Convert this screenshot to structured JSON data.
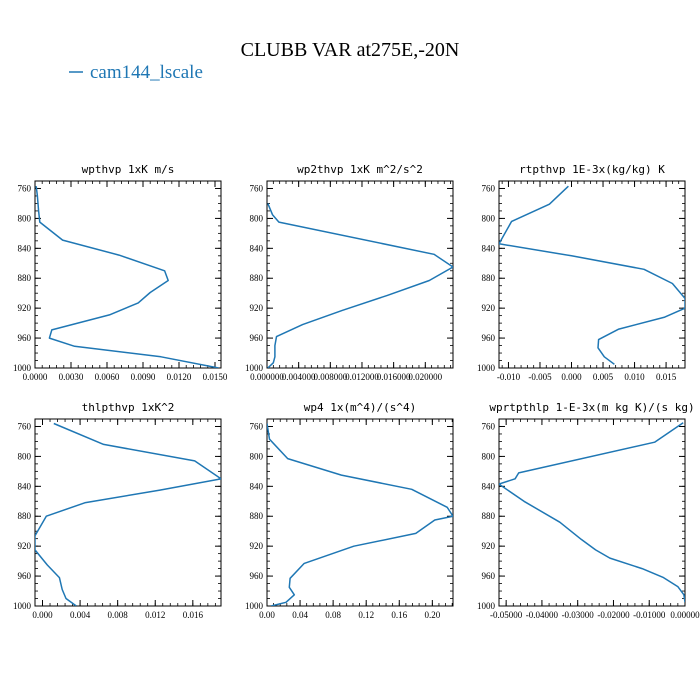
{
  "figure": {
    "title": "CLUBB VAR at275E,-20N",
    "legend": "cam144_lscale",
    "line_color": "#1f77b4"
  },
  "chart_data": [
    {
      "type": "line",
      "title": "wpthvp  1xK m/s",
      "xlim": [
        0,
        0.0155
      ],
      "ylim": [
        1000,
        750
      ],
      "xticks": [
        0,
        0.003,
        0.006,
        0.009,
        0.012,
        0.015
      ],
      "xtick_labels": [
        "0.0000",
        "0.0030",
        "0.0060",
        "0.0090",
        "0.0120",
        "0.0150"
      ],
      "yticks": [
        760,
        800,
        840,
        880,
        920,
        960,
        1000
      ],
      "ytick_labels": [
        "760",
        "800",
        "840",
        "880",
        "920",
        "960",
        "1000"
      ],
      "series": [
        {
          "x": [
            0.0001,
            0.0002,
            0.0003,
            0.0004,
            0.0023,
            0.007,
            0.0108,
            0.0111,
            0.0096,
            0.0086,
            0.0062,
            0.0014,
            0.0012,
            0.0033,
            0.0105,
            0.0153
          ],
          "y": [
            757,
            770,
            790,
            805,
            829,
            849,
            870,
            883,
            899,
            913,
            929,
            949,
            960,
            971,
            985,
            1000
          ]
        }
      ]
    },
    {
      "type": "line",
      "title": "wp2thvp  1xK m^2/s^2",
      "xlim": [
        0,
        0.0235
      ],
      "ylim": [
        1000,
        750
      ],
      "xticks": [
        0,
        0.004,
        0.008,
        0.012,
        0.016,
        0.02
      ],
      "xtick_labels": [
        "0.000000",
        "0.004000",
        "0.008000",
        "0.012000",
        "0.016000",
        "0.020000"
      ],
      "yticks": [
        760,
        800,
        840,
        880,
        920,
        960,
        1000
      ],
      "ytick_labels": [
        "760",
        "800",
        "840",
        "880",
        "920",
        "960",
        "1000"
      ],
      "series": [
        {
          "x": [
            0.0001,
            0.0007,
            0.0015,
            0.0211,
            0.0235,
            0.0205,
            0.0152,
            0.0095,
            0.0045,
            0.0012,
            0.001,
            0.001,
            0.0008,
            0.0001
          ],
          "y": [
            780,
            795,
            805,
            848,
            865,
            883,
            903,
            923,
            942,
            958,
            970,
            985,
            993,
            1000
          ]
        }
      ]
    },
    {
      "type": "line",
      "title": "rtpthvp  1E-3x(kg/kg) K",
      "xlim": [
        -0.0115,
        0.018
      ],
      "ylim": [
        1000,
        750
      ],
      "xticks": [
        -0.01,
        -0.005,
        0,
        0.005,
        0.01,
        0.015
      ],
      "xtick_labels": [
        "-0.010",
        "-0.005",
        "0.000",
        "0.005",
        "0.010",
        "0.015"
      ],
      "yticks": [
        760,
        800,
        840,
        880,
        920,
        960,
        1000
      ],
      "ytick_labels": [
        "760",
        "800",
        "840",
        "880",
        "920",
        "960",
        "1000"
      ],
      "series": [
        {
          "x": [
            -0.0005,
            -0.0035,
            -0.0095,
            -0.0115,
            0.0,
            0.0115,
            0.016,
            0.018,
            0.018,
            0.0148,
            0.0075,
            0.0043,
            0.0042,
            0.0052,
            0.0068
          ],
          "y": [
            757,
            781,
            804,
            834,
            850,
            868,
            887,
            907,
            920,
            932,
            948,
            962,
            973,
            985,
            995
          ]
        }
      ]
    },
    {
      "type": "line",
      "title": "thlpthvp  1xK^2",
      "xlim": [
        -0.0008,
        0.019
      ],
      "ylim": [
        1000,
        750
      ],
      "xticks": [
        0,
        0.004,
        0.008,
        0.012,
        0.016
      ],
      "xtick_labels": [
        "0.000",
        "0.004",
        "0.008",
        "0.012",
        "0.016"
      ],
      "yticks": [
        760,
        800,
        840,
        880,
        920,
        960,
        1000
      ],
      "ytick_labels": [
        "760",
        "800",
        "840",
        "880",
        "920",
        "960",
        "1000"
      ],
      "series": [
        {
          "x": [
            0.0012,
            0.0065,
            0.0162,
            0.019,
            0.0125,
            0.0045,
            0.0004,
            -0.0008,
            -0.0008,
            0.0005,
            0.0018,
            0.0021,
            0.0025,
            0.0036
          ],
          "y": [
            756,
            784,
            806,
            830,
            845,
            862,
            880,
            906,
            925,
            945,
            962,
            978,
            990,
            1000
          ]
        }
      ]
    },
    {
      "type": "line",
      "title": "wp4  1x(m^4)/(s^4)",
      "xlim": [
        0,
        0.225
      ],
      "ylim": [
        1000,
        750
      ],
      "xticks": [
        0,
        0.04,
        0.08,
        0.12,
        0.16,
        0.2
      ],
      "xtick_labels": [
        "0.00",
        "0.04",
        "0.08",
        "0.12",
        "0.16",
        "0.20"
      ],
      "yticks": [
        760,
        800,
        840,
        880,
        920,
        960,
        1000
      ],
      "ytick_labels": [
        "760",
        "800",
        "840",
        "880",
        "920",
        "960",
        "1000"
      ],
      "series": [
        {
          "x": [
            0.0,
            0.003,
            0.025,
            0.09,
            0.175,
            0.218,
            0.225,
            0.203,
            0.18,
            0.105,
            0.045,
            0.028,
            0.027,
            0.033,
            0.023,
            0.005
          ],
          "y": [
            756,
            777,
            803,
            825,
            844,
            868,
            880,
            885,
            903,
            920,
            943,
            963,
            975,
            985,
            995,
            1000
          ]
        }
      ]
    },
    {
      "type": "line",
      "title": "wprtpthlp  1-E-3x(m kg K)/(s kg)",
      "xlim": [
        -0.052,
        0.0
      ],
      "ylim": [
        1000,
        750
      ],
      "xticks": [
        -0.05,
        -0.04,
        -0.03,
        -0.02,
        -0.01,
        0
      ],
      "xtick_labels": [
        "-0.05000",
        "-0.04000",
        "-0.03000",
        "-0.02000",
        "-0.01000",
        "0.00000"
      ],
      "yticks": [
        760,
        800,
        840,
        880,
        920,
        960,
        1000
      ],
      "ytick_labels": [
        "760",
        "800",
        "840",
        "880",
        "920",
        "960",
        "1000"
      ],
      "series": [
        {
          "x": [
            -0.0005,
            -0.0085,
            -0.0465,
            -0.0475,
            -0.052,
            -0.045,
            -0.035,
            -0.029,
            -0.025,
            -0.021,
            -0.012,
            -0.006,
            -0.002,
            -0.0003,
            0.0
          ],
          "y": [
            755,
            781,
            822,
            830,
            837,
            860,
            888,
            911,
            925,
            936,
            950,
            962,
            974,
            985,
            995
          ]
        }
      ]
    }
  ]
}
